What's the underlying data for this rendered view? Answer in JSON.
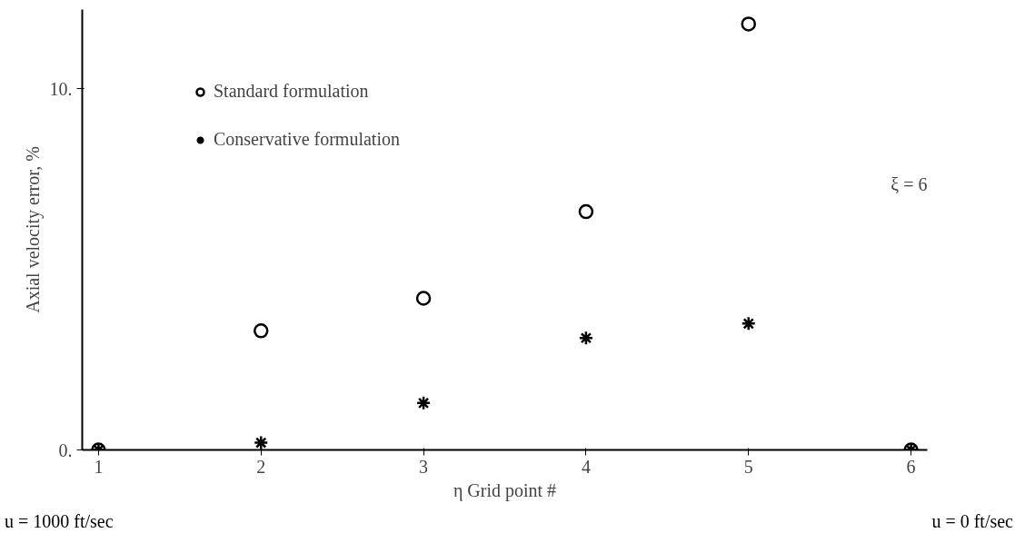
{
  "chart_data": {
    "type": "scatter",
    "xlabel": "η Grid point #",
    "ylabel": "Axial velocity error, %",
    "x": [
      1,
      2,
      3,
      4,
      5,
      6
    ],
    "series": [
      {
        "name": "Standard formulation",
        "color": "#000000",
        "marker": "circle",
        "values": [
          0,
          3.3,
          4.2,
          6.6,
          11.8,
          0
        ]
      },
      {
        "name": "Conservative formulation",
        "color": "#000000",
        "marker": "cross",
        "values": [
          0,
          0.2,
          1.3,
          3.1,
          3.5,
          0
        ]
      }
    ],
    "xlim": [
      0.9,
      6.1
    ],
    "ylim": [
      0,
      12.2
    ],
    "xticks": [
      1,
      2,
      3,
      4,
      5,
      6
    ],
    "yticks": [
      {
        "value": 0,
        "label": "0."
      },
      {
        "value": 10,
        "label": "10."
      }
    ],
    "grid": false,
    "legend": "top left",
    "annotations": [
      "ξ = 6",
      "u = 1000 ft/sec",
      "u = 0 ft/sec"
    ]
  }
}
